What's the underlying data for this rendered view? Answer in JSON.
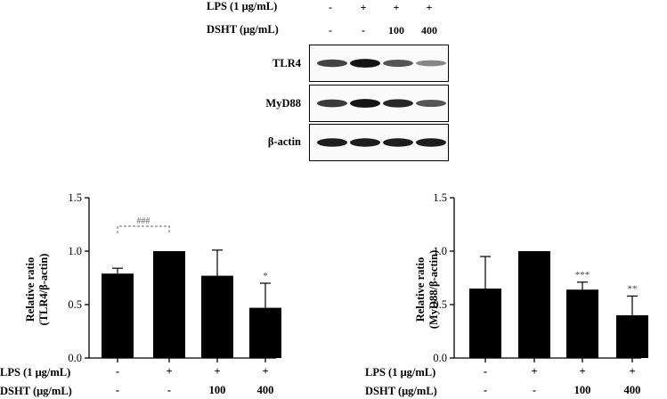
{
  "western_blot": {
    "lps_header": "LPS (1 μg/mL)",
    "dsht_header": "DSHT (μg/mL)",
    "lps_values": [
      "-",
      "+",
      "+",
      "+"
    ],
    "dsht_values": [
      "-",
      "-",
      "100",
      "400"
    ],
    "rows": [
      {
        "label": "TLR4",
        "band_intensity": [
          0.7,
          0.95,
          0.6,
          0.35
        ]
      },
      {
        "label": "MyD88",
        "band_intensity": [
          0.75,
          0.95,
          0.85,
          0.6
        ]
      },
      {
        "label": "β-actin",
        "band_intensity": [
          0.9,
          0.9,
          0.9,
          0.9
        ]
      }
    ]
  },
  "chart_data": [
    {
      "type": "bar",
      "ylabel_line1": "Relative ratio",
      "ylabel_line2": "(TLR4/β-actin)",
      "ylim": [
        0.0,
        1.5
      ],
      "yticks": [
        "0.0",
        "0.5",
        "1.0",
        "1.5"
      ],
      "values": [
        0.79,
        1.0,
        0.77,
        0.47
      ],
      "errors": [
        0.05,
        0.0,
        0.24,
        0.23
      ],
      "significance": [
        "",
        "",
        "",
        "*"
      ],
      "bracket_label": "###",
      "bracket_between": [
        0,
        1
      ],
      "lps_label": "LPS (1 μg/mL)",
      "dsht_label": "DSHT (μg/mL)",
      "lps_values": [
        "-",
        "+",
        "+",
        "+"
      ],
      "dsht_values": [
        "-",
        "-",
        "100",
        "400"
      ]
    },
    {
      "type": "bar",
      "ylabel_line1": "Relative ratio",
      "ylabel_line2": "(MyD88/β-actin)",
      "ylim": [
        0.0,
        1.5
      ],
      "yticks": [
        "0.0",
        "0.5",
        "1.0",
        "1.5"
      ],
      "values": [
        0.65,
        1.0,
        0.64,
        0.4
      ],
      "errors": [
        0.3,
        0.0,
        0.07,
        0.18
      ],
      "significance": [
        "",
        "",
        "***",
        "**"
      ],
      "bracket_label": "",
      "bracket_between": [],
      "lps_label": "LPS (1 μg/mL)",
      "dsht_label": "DSHT (μg/mL)",
      "lps_values": [
        "-",
        "+",
        "+",
        "+"
      ],
      "dsht_values": [
        "-",
        "-",
        "100",
        "400"
      ]
    }
  ]
}
